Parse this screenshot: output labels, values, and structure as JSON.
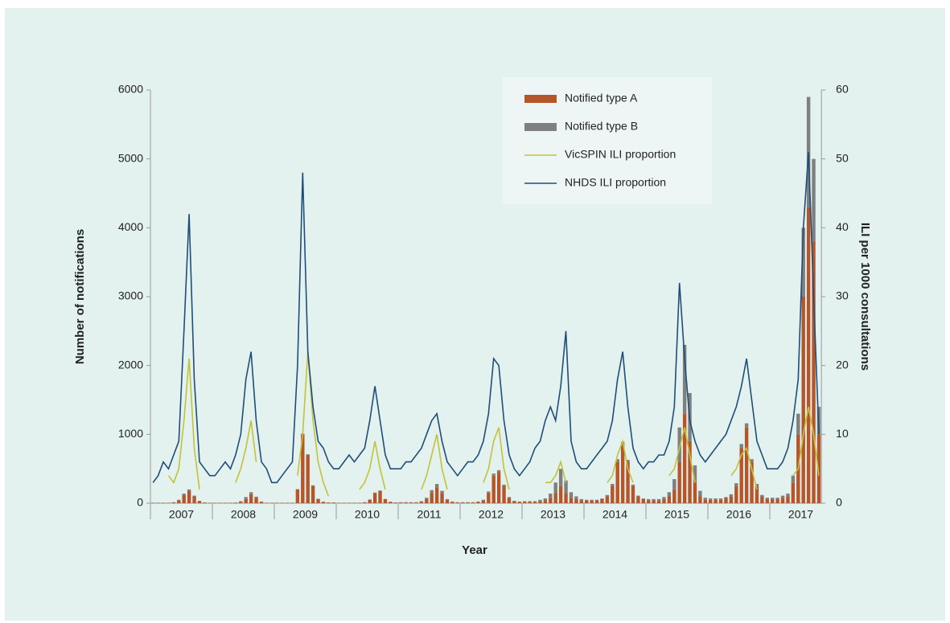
{
  "chart_data": {
    "type": "bar-line",
    "x_label": "Year",
    "y_label": "Number of notifications",
    "y2_label": "ILI per 1000 consultations",
    "categories": [
      "2007",
      "2008",
      "2009",
      "2010",
      "2011",
      "2012",
      "2013",
      "2014",
      "2015",
      "2016",
      "2017"
    ],
    "ylim": [
      0,
      6000
    ],
    "yticks": [
      0,
      1000,
      2000,
      3000,
      4000,
      5000,
      6000
    ],
    "y2lim": [
      0,
      60
    ],
    "y2ticks": [
      0,
      10,
      20,
      30,
      40,
      50,
      60
    ],
    "legend": "top-right",
    "series": [
      {
        "name": "Notified type A",
        "kind": "bar",
        "color": "#b5562a",
        "values": [
          [
            5,
            5,
            5,
            5,
            10,
            40,
            120,
            180,
            100,
            30,
            10,
            5
          ],
          [
            5,
            5,
            5,
            5,
            5,
            20,
            60,
            130,
            80,
            20,
            5,
            5
          ],
          [
            5,
            5,
            5,
            5,
            200,
            1000,
            700,
            250,
            60,
            20,
            10,
            10
          ],
          [
            5,
            5,
            5,
            5,
            5,
            10,
            50,
            150,
            180,
            60,
            20,
            10
          ],
          [
            10,
            10,
            10,
            10,
            20,
            60,
            150,
            230,
            150,
            50,
            20,
            10
          ],
          [
            10,
            10,
            10,
            20,
            40,
            150,
            400,
            450,
            250,
            80,
            30,
            20
          ],
          [
            20,
            20,
            20,
            30,
            40,
            80,
            150,
            250,
            150,
            80,
            60,
            40
          ],
          [
            40,
            40,
            40,
            60,
            100,
            250,
            600,
            850,
            600,
            250,
            100,
            60
          ],
          [
            40,
            40,
            40,
            60,
            100,
            200,
            600,
            1300,
            900,
            300,
            100,
            50
          ],
          [
            50,
            50,
            50,
            70,
            100,
            250,
            800,
            1100,
            600,
            250,
            100,
            60
          ],
          [
            60,
            60,
            80,
            100,
            300,
            1000,
            3000,
            4300,
            3800,
            1000
          ]
        ]
      },
      {
        "name": "Notified type B",
        "kind": "bar",
        "color": "#7f7f7f",
        "values": [
          [
            2,
            2,
            2,
            2,
            5,
            10,
            20,
            20,
            10,
            5,
            2,
            2
          ],
          [
            2,
            2,
            2,
            2,
            5,
            10,
            30,
            30,
            15,
            5,
            2,
            2
          ],
          [
            2,
            2,
            2,
            2,
            5,
            10,
            10,
            10,
            5,
            2,
            2,
            2
          ],
          [
            2,
            2,
            2,
            2,
            2,
            5,
            5,
            5,
            5,
            2,
            2,
            2
          ],
          [
            5,
            5,
            5,
            5,
            10,
            20,
            40,
            50,
            30,
            10,
            5,
            5
          ],
          [
            5,
            5,
            5,
            5,
            10,
            20,
            30,
            30,
            20,
            10,
            5,
            5
          ],
          [
            10,
            10,
            10,
            20,
            30,
            60,
            150,
            250,
            180,
            80,
            40,
            20
          ],
          [
            10,
            10,
            10,
            10,
            20,
            30,
            40,
            40,
            30,
            20,
            10,
            10
          ],
          [
            20,
            20,
            20,
            30,
            60,
            150,
            500,
            1000,
            700,
            250,
            80,
            30
          ],
          [
            20,
            20,
            20,
            20,
            30,
            40,
            60,
            60,
            40,
            30,
            20,
            20
          ],
          [
            20,
            20,
            30,
            40,
            100,
            300,
            1000,
            1600,
            1200,
            400
          ]
        ]
      },
      {
        "name": "VicSPIN ILI proportion",
        "kind": "line",
        "axis": "y2",
        "color": "#c3c23a",
        "values": [
          [
            null,
            null,
            null,
            4,
            3,
            5,
            12,
            21,
            8,
            2,
            null,
            null
          ],
          [
            null,
            null,
            null,
            null,
            3,
            5,
            8,
            12,
            6,
            null,
            null,
            null
          ],
          [
            null,
            null,
            null,
            null,
            4,
            10,
            22,
            12,
            6,
            3,
            1,
            null
          ],
          [
            null,
            null,
            null,
            null,
            2,
            3,
            5,
            9,
            5,
            2,
            null,
            null
          ],
          [
            null,
            null,
            null,
            null,
            2,
            4,
            7,
            10,
            5,
            2,
            null,
            null
          ],
          [
            null,
            null,
            null,
            null,
            3,
            5,
            9,
            11,
            5,
            2,
            null,
            null
          ],
          [
            null,
            null,
            null,
            null,
            3,
            3,
            4,
            6,
            3,
            null,
            null,
            null
          ],
          [
            null,
            null,
            null,
            null,
            3,
            4,
            7,
            9,
            5,
            3,
            null,
            null
          ],
          [
            null,
            null,
            null,
            null,
            4,
            5,
            8,
            11,
            7,
            3,
            null,
            null
          ],
          [
            null,
            null,
            null,
            null,
            4,
            5,
            7,
            8,
            5,
            2,
            null,
            null
          ],
          [
            null,
            null,
            null,
            null,
            4,
            5,
            10,
            14,
            10,
            4
          ]
        ]
      },
      {
        "name": "NHDS ILI proportion",
        "kind": "line",
        "axis": "y2",
        "color": "#1f4e79",
        "values": [
          [
            3,
            4,
            6,
            5,
            7,
            9,
            25,
            42,
            18,
            6,
            5,
            4
          ],
          [
            4,
            5,
            6,
            5,
            7,
            10,
            18,
            22,
            12,
            6,
            5,
            3
          ],
          [
            3,
            4,
            5,
            6,
            20,
            48,
            22,
            14,
            9,
            8,
            6,
            5
          ],
          [
            5,
            6,
            7,
            6,
            7,
            8,
            12,
            17,
            12,
            7,
            5,
            5
          ],
          [
            5,
            6,
            6,
            7,
            8,
            10,
            12,
            13,
            9,
            6,
            5,
            4
          ],
          [
            5,
            6,
            6,
            7,
            9,
            13,
            21,
            20,
            12,
            7,
            5,
            4
          ],
          [
            5,
            6,
            8,
            9,
            12,
            14,
            12,
            17,
            25,
            9,
            6,
            5
          ],
          [
            5,
            6,
            7,
            8,
            9,
            12,
            18,
            22,
            14,
            8,
            6,
            5
          ],
          [
            6,
            6,
            7,
            7,
            9,
            14,
            32,
            21,
            12,
            9,
            7,
            6
          ],
          [
            7,
            8,
            9,
            10,
            12,
            14,
            17,
            21,
            15,
            9,
            7,
            5
          ],
          [
            5,
            5,
            6,
            8,
            12,
            18,
            40,
            51,
            30,
            10
          ]
        ]
      }
    ]
  }
}
